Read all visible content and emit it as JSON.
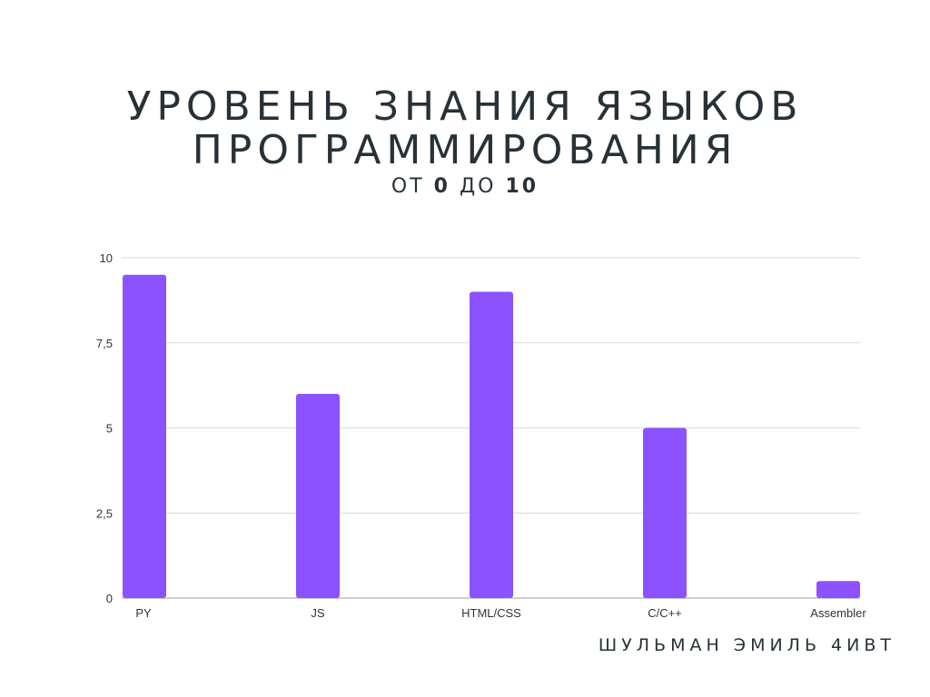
{
  "title_line1": "УРОВЕНЬ ЗНАНИЯ ЯЗЫКОВ",
  "title_line2": "ПРОГРАММИРОВАНИЯ",
  "subtitle": {
    "prefix": "ОТ ",
    "from": "0",
    "middle": " ДО ",
    "to": "10"
  },
  "author": "ШУЛЬМАН ЭМИЛЬ 4ИВТ",
  "colors": {
    "bar": "#8c52ff",
    "grid": "#d9d9d9",
    "axis": "#bdbdbd"
  },
  "chart_data": {
    "type": "bar",
    "categories": [
      "PY",
      "JS",
      "HTML/CSS",
      "C/C++",
      "Assembler"
    ],
    "values": [
      9.5,
      6,
      9,
      5,
      0.5
    ],
    "ylim": [
      0,
      10
    ],
    "yticks": [
      0,
      2.5,
      5,
      7.5,
      10
    ],
    "ytick_labels": [
      "0",
      "2,5",
      "5",
      "7,5",
      "10"
    ],
    "grid": true
  }
}
